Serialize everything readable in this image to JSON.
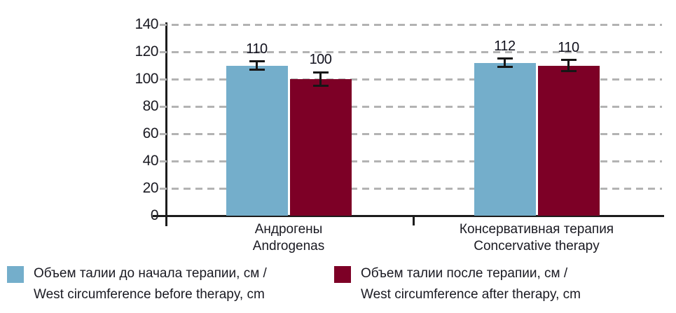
{
  "chart_data": {
    "type": "bar",
    "title": "",
    "categories": [
      [
        "Андрогены",
        "Androgenas"
      ],
      [
        "Консервативная терапия",
        "Concervative therapy"
      ]
    ],
    "series": [
      {
        "name": "Объем талии до начала терапии, см / West circumference before therapy, cm",
        "color": "#74AECB",
        "values": [
          110,
          112
        ],
        "errors_plus_minus": [
          3,
          3
        ]
      },
      {
        "name": "Объем талии после терапии, см / West circumference after therapy, cm",
        "color": "#7D0026",
        "values": [
          100,
          110
        ],
        "errors_plus_minus": [
          5,
          4
        ]
      }
    ],
    "value_labels": [
      [
        "110",
        "112"
      ],
      [
        "100",
        "110"
      ]
    ],
    "ylim": [
      0,
      140
    ],
    "yticks": [
      0,
      20,
      40,
      60,
      80,
      100,
      120,
      140
    ],
    "grid": "horizontal-dashed",
    "grid_color": "#B3B3B3",
    "axis_color": "#1C1C1C",
    "text_color": "#1A1A22",
    "legend_position": "bottom",
    "error_bars_shown": true
  },
  "legend": {
    "items": [
      {
        "color": "#74AECB",
        "line1": "Объем талии до начала терапии, см /",
        "line2": "West circumference before therapy, cm"
      },
      {
        "color": "#7D0026",
        "line1": "Объем талии после терапии, см /",
        "line2": "West circumference after therapy, cm"
      }
    ]
  }
}
